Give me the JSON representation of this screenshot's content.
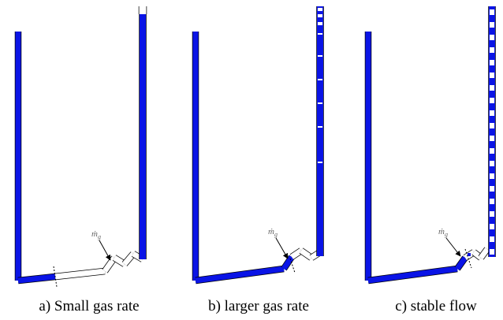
{
  "panels": [
    {
      "caption": "a) Small gas rate",
      "inlet_label": {
        "main": "ṁ",
        "sub": "g"
      }
    },
    {
      "caption": "b) larger gas rate",
      "inlet_label": {
        "main": "ṁ",
        "sub": "g"
      }
    },
    {
      "caption": "c) stable flow",
      "inlet_label": {
        "main": "ṁ",
        "sub": "g"
      }
    }
  ]
}
